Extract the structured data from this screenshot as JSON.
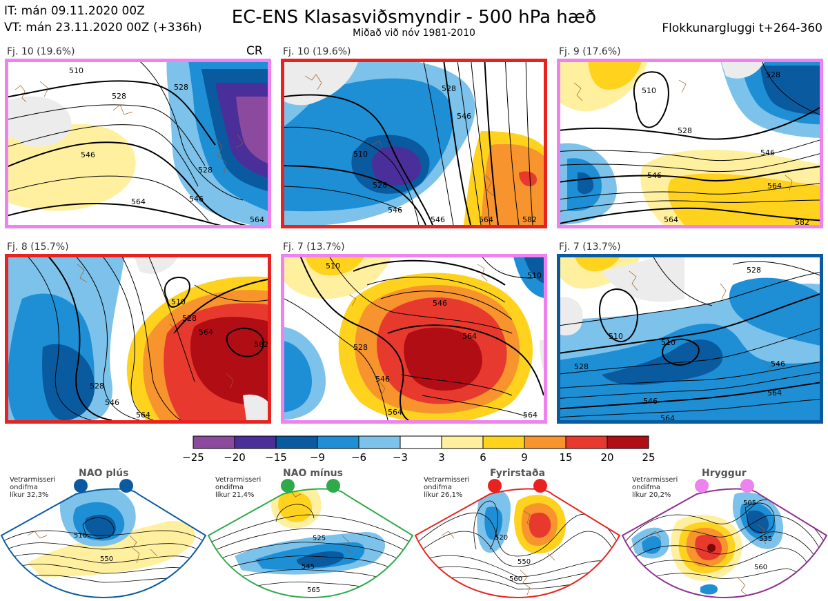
{
  "header": {
    "it_line": "IT: mán 09.11.2020 00Z",
    "vt_line": "VT: mán 23.11.2020 00Z  (+336h)",
    "title": "EC-ENS Klasasviðsmyndir - 500 hPa hæð",
    "subtitle": "Miðað við nóv 1981-2010",
    "window": "Flokkunargluggi t+264-360"
  },
  "panels": [
    {
      "label": "Fj. 10 (19.6%)",
      "frame_color": "#ee82ee",
      "regime": "hryggur",
      "marker": "CR",
      "isolines": [
        "510",
        "528",
        "546",
        "528",
        "546",
        "564",
        "564",
        "528"
      ]
    },
    {
      "label": "Fj. 10 (19.6%)",
      "frame_color": "#e8231f",
      "regime": "fyrirstada",
      "isolines": [
        "510",
        "528",
        "546",
        "528",
        "546",
        "546",
        "564",
        "582"
      ]
    },
    {
      "label": "Fj. 9 (17.6%)",
      "frame_color": "#ee82ee",
      "regime": "hryggur",
      "isolines": [
        "510",
        "528",
        "546",
        "564",
        "546",
        "564",
        "528",
        "582"
      ]
    },
    {
      "label": "Fj. 8 (15.7%)",
      "frame_color": "#e8231f",
      "regime": "fyrirstada",
      "isolines": [
        "510",
        "528",
        "564",
        "582",
        "528",
        "546",
        "564"
      ]
    },
    {
      "label": "Fj. 7 (13.7%)",
      "frame_color": "#ee82ee",
      "regime": "hryggur",
      "isolines": [
        "510",
        "528",
        "546",
        "564",
        "546",
        "564",
        "564",
        "510"
      ]
    },
    {
      "label": "Fj. 7 (13.7%)",
      "frame_color": "#0a5aa0",
      "regime": "nao_plus",
      "isolines": [
        "528",
        "510",
        "510",
        "546",
        "528",
        "546",
        "564",
        "564"
      ]
    }
  ],
  "colorbar": {
    "ticks": [
      "−25",
      "−20",
      "−15",
      "−9",
      "−6",
      "−3",
      "3",
      "6",
      "9",
      "15",
      "20",
      "25"
    ],
    "colors": [
      "#8c4a9e",
      "#4a2f9a",
      "#0a5aa0",
      "#1f8fd5",
      "#7cc2ea",
      "#ffffff",
      "#fff0a0",
      "#ffd21e",
      "#f7942e",
      "#e8392e",
      "#b00d14"
    ]
  },
  "regimes": [
    {
      "key": "nao_plus",
      "name": "NAO plús",
      "note": [
        "Vetrarmisseri",
        "ondifma",
        "líkur 32,3%"
      ],
      "frame_color": "#0a5aa0",
      "dot_color": "#0a5aa0",
      "isolines": [
        "510",
        "550"
      ]
    },
    {
      "key": "nao_minus",
      "name": "NAO mínus",
      "note": [
        "Vetrarmisseri",
        "ondifma",
        "líkur 21,4%"
      ],
      "frame_color": "#2eaa4a",
      "dot_color": "#2eaa4a",
      "isolines": [
        "525",
        "545",
        "565"
      ]
    },
    {
      "key": "fyrirstada",
      "name": "Fyrirstaða",
      "note": [
        "Vetrarmisseri",
        "ondifma",
        "líkur 26,1%"
      ],
      "frame_color": "#e8231f",
      "dot_color": "#e8231f",
      "isolines": [
        "520",
        "550",
        "560"
      ]
    },
    {
      "key": "hryggur",
      "name": "Hryggur",
      "note": [
        "Vetrarmisseri",
        "ondifma",
        "líkur 20,2%"
      ],
      "frame_color": "#8e2e92",
      "dot_color": "#ee82ee",
      "isolines": [
        "505",
        "535",
        "560"
      ]
    }
  ]
}
